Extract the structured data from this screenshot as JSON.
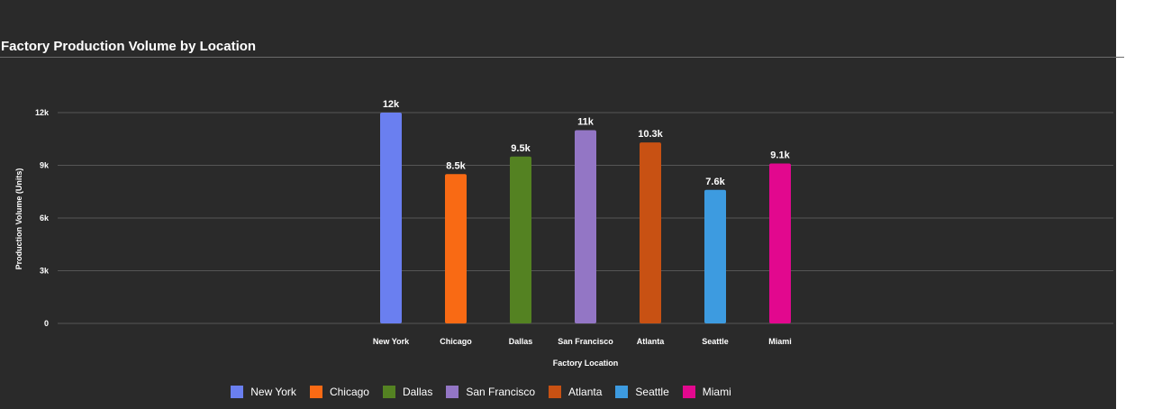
{
  "chart_data": {
    "type": "bar",
    "title": "Factory Production Volume by Location",
    "xlabel": "Factory Location",
    "ylabel": "Production Volume (Units)",
    "categories": [
      "New York",
      "Chicago",
      "Dallas",
      "San Francisco",
      "Atlanta",
      "Seattle",
      "Miami"
    ],
    "values": [
      12000,
      8500,
      9500,
      11000,
      10300,
      7600,
      9100
    ],
    "value_labels": [
      "12k",
      "8.5k",
      "9.5k",
      "11k",
      "10.3k",
      "7.6k",
      "9.1k"
    ],
    "colors": [
      "#6a7ff0",
      "#f96a14",
      "#548222",
      "#9376c5",
      "#c85113",
      "#3d9be0",
      "#e2088e"
    ],
    "ylim": [
      0,
      12000
    ],
    "yticks": [
      0,
      3000,
      6000,
      9000,
      12000
    ],
    "ytick_labels": [
      "0",
      "3k",
      "6k",
      "9k",
      "12k"
    ],
    "grid": true,
    "legend_position": "bottom"
  },
  "theme": {
    "background": "#2a2a2a",
    "text": "#ffffff",
    "gridline": "#555555"
  }
}
